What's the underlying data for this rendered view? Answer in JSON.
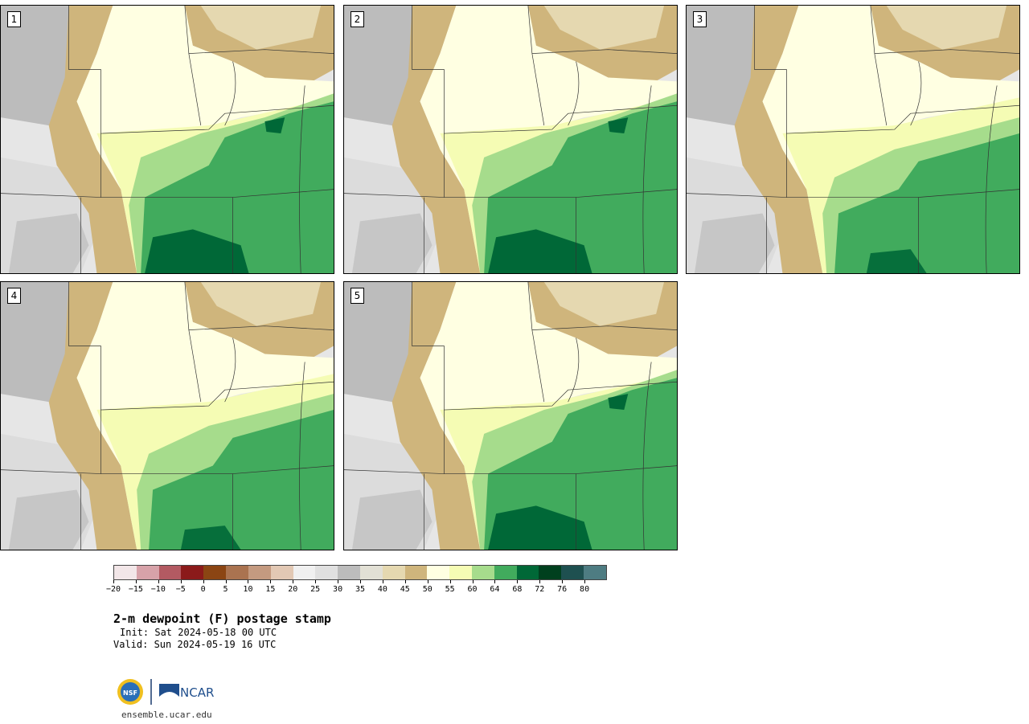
{
  "panels": [
    {
      "label": "1",
      "moist": "strong"
    },
    {
      "label": "2",
      "moist": "strong"
    },
    {
      "label": "3",
      "moist": "moderate"
    },
    {
      "label": "4",
      "moist": "moderate"
    },
    {
      "label": "5",
      "moist": "strong"
    }
  ],
  "colorbar": {
    "colors": [
      "#f2e6e8",
      "#d7a2a9",
      "#b35a62",
      "#8b1a1a",
      "#8b4513",
      "#aa7350",
      "#c49a80",
      "#e2c8b4",
      "#f0f0f0",
      "#e0e0e0",
      "#bcbcbc",
      "#e2e0d5",
      "#e5d8b0",
      "#cfb57c",
      "#ffffe2",
      "#f5fcb4",
      "#a6dc8c",
      "#41ab5d",
      "#006837",
      "#00401e",
      "#1e5050",
      "#4e7c82"
    ],
    "tick_labels": [
      "−20",
      "−15",
      "−10",
      "−5",
      "0",
      "5",
      "10",
      "15",
      "20",
      "25",
      "30",
      "35",
      "40",
      "45",
      "50",
      "55",
      "60",
      "64",
      "68",
      "72",
      "76",
      "80"
    ]
  },
  "title": "2-m dewpoint (F) postage stamp",
  "init": "Init: Sat 2024-05-18 00 UTC",
  "valid": "Valid: Sun 2024-05-19 16 UTC",
  "logo_nsf": "NSF",
  "logo_ncar": "NCAR",
  "url": "ensemble.ucar.edu"
}
